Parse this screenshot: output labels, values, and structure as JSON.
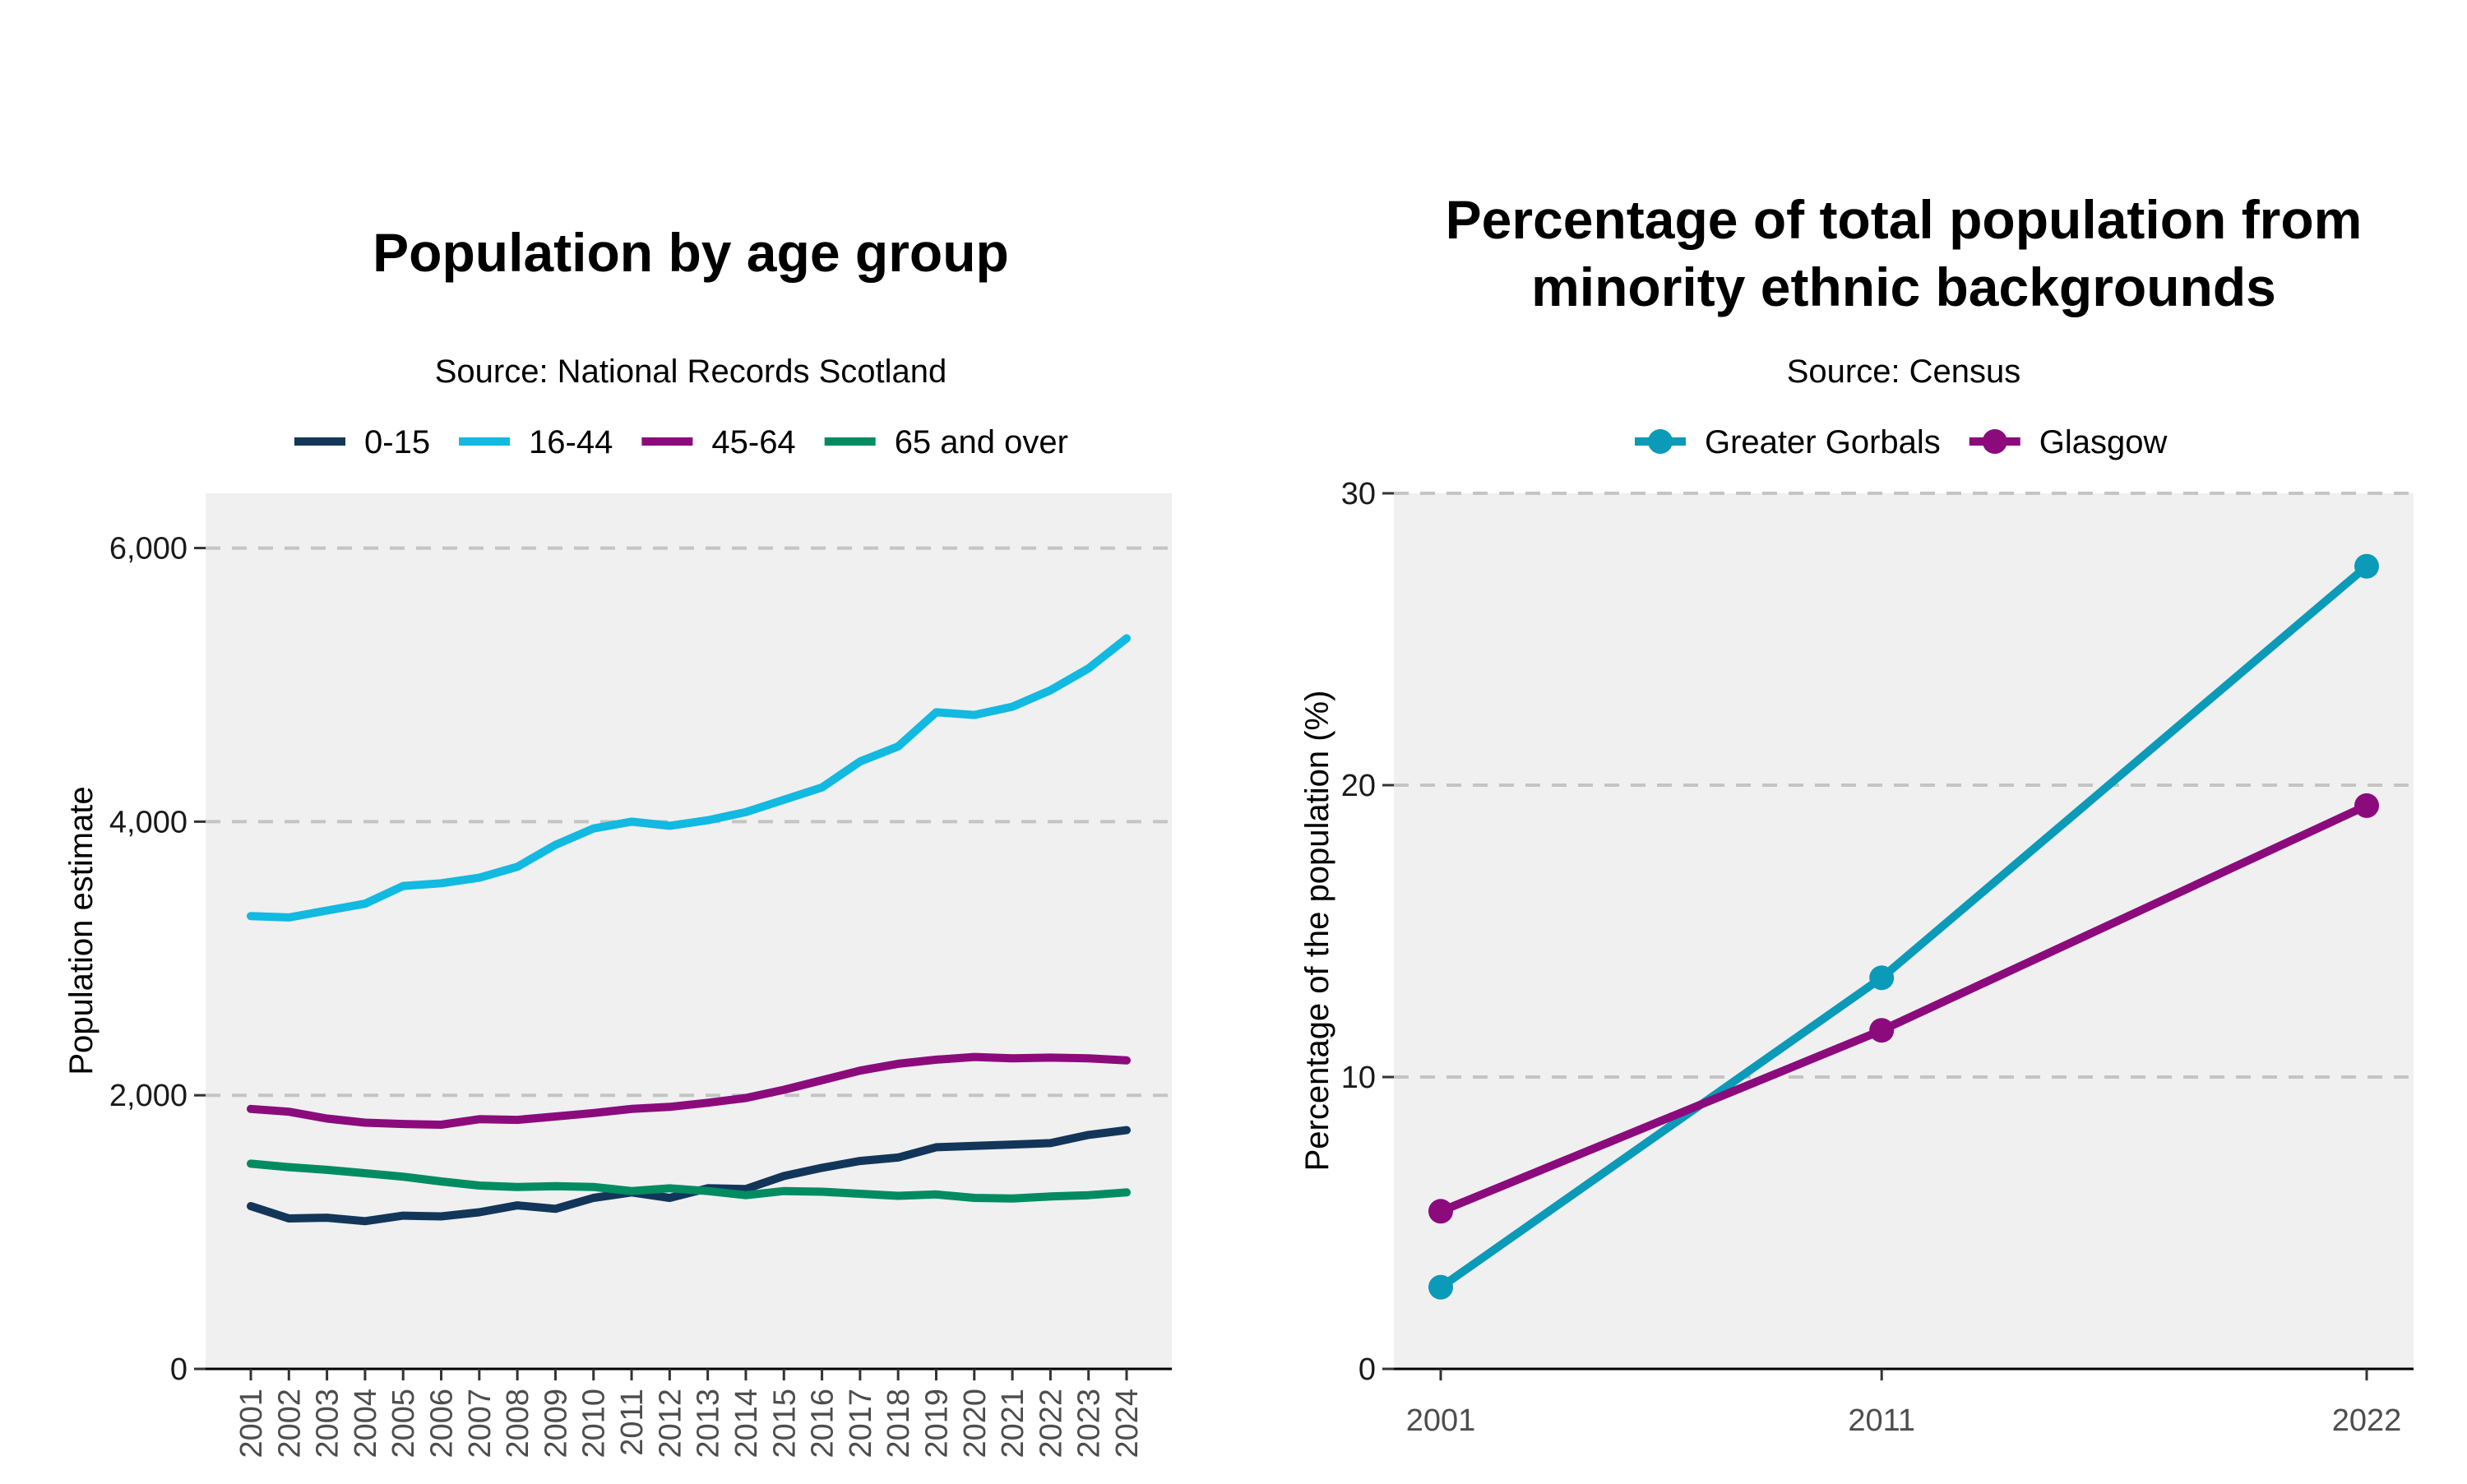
{
  "colors": {
    "age_0_15": "#12365a",
    "age_16_44": "#12b9e0",
    "age_45_64": "#8b0b7d",
    "age_65_over": "#008c60",
    "greater_gorbals": "#0b9ab8",
    "glasgow": "#8b0b7d",
    "panel_bg": "#f0f0f0",
    "grid": "#c4c4c4"
  },
  "chart_data": [
    {
      "type": "line",
      "title": "Population by age group",
      "subtitle": "Source: National Records Scotland",
      "xlabel": "",
      "ylabel": "Population estimate",
      "x": [
        "2001",
        "2002",
        "2003",
        "2004",
        "2005",
        "2006",
        "2007",
        "2008",
        "2009",
        "2010",
        "2011",
        "2012",
        "2013",
        "2014",
        "2015",
        "2016",
        "2017",
        "2018",
        "2019",
        "2020",
        "2021",
        "2022",
        "2023",
        "2024"
      ],
      "ylim": [
        0,
        6400
      ],
      "yticks": [
        0,
        2000,
        4000,
        6000
      ],
      "ytick_labels": [
        "0",
        "2,000",
        "4,000",
        "6,000"
      ],
      "grid": "horizontal dashed",
      "legend_position": "top",
      "series": [
        {
          "name": "0-15",
          "color_key": "age_0_15",
          "values": [
            1190,
            1100,
            1105,
            1080,
            1120,
            1115,
            1145,
            1195,
            1170,
            1250,
            1290,
            1250,
            1320,
            1315,
            1410,
            1470,
            1520,
            1545,
            1620,
            1630,
            1640,
            1650,
            1710,
            1745
          ]
        },
        {
          "name": "16-44",
          "color_key": "age_16_44",
          "values": [
            3310,
            3300,
            3350,
            3400,
            3530,
            3550,
            3590,
            3670,
            3830,
            3950,
            4000,
            3970,
            4010,
            4070,
            4160,
            4250,
            4440,
            4550,
            4800,
            4780,
            4840,
            4960,
            5120,
            5340
          ]
        },
        {
          "name": "45-64",
          "color_key": "age_45_64",
          "values": [
            1900,
            1880,
            1830,
            1800,
            1790,
            1785,
            1825,
            1820,
            1845,
            1870,
            1900,
            1915,
            1945,
            1980,
            2040,
            2110,
            2180,
            2230,
            2260,
            2280,
            2270,
            2275,
            2270,
            2255
          ]
        },
        {
          "name": "65 and over",
          "color_key": "age_65_over",
          "values": [
            1500,
            1475,
            1455,
            1430,
            1405,
            1370,
            1340,
            1330,
            1335,
            1330,
            1300,
            1320,
            1300,
            1270,
            1300,
            1295,
            1280,
            1265,
            1275,
            1250,
            1245,
            1260,
            1270,
            1290
          ]
        }
      ]
    },
    {
      "type": "line",
      "title": "Percentage of total population from minority ethnic backgrounds",
      "title_lines": [
        "Percentage of total population from",
        "minority ethnic backgrounds"
      ],
      "subtitle": "Source: Census",
      "xlabel": "",
      "ylabel": "Percentage of the population (%)",
      "x": [
        2001,
        2011,
        2022
      ],
      "x_labels": [
        "2001",
        "2011",
        "2022"
      ],
      "ylim": [
        0,
        30
      ],
      "yticks": [
        0,
        10,
        20,
        30
      ],
      "ytick_labels": [
        "0",
        "10",
        "20",
        "30"
      ],
      "grid": "horizontal dashed",
      "legend_position": "top",
      "markers": true,
      "series": [
        {
          "name": "Greater Gorbals",
          "color_key": "greater_gorbals",
          "values": [
            2.8,
            13.4,
            27.5
          ]
        },
        {
          "name": "Glasgow",
          "color_key": "glasgow",
          "values": [
            5.4,
            11.6,
            19.3
          ]
        }
      ]
    }
  ]
}
